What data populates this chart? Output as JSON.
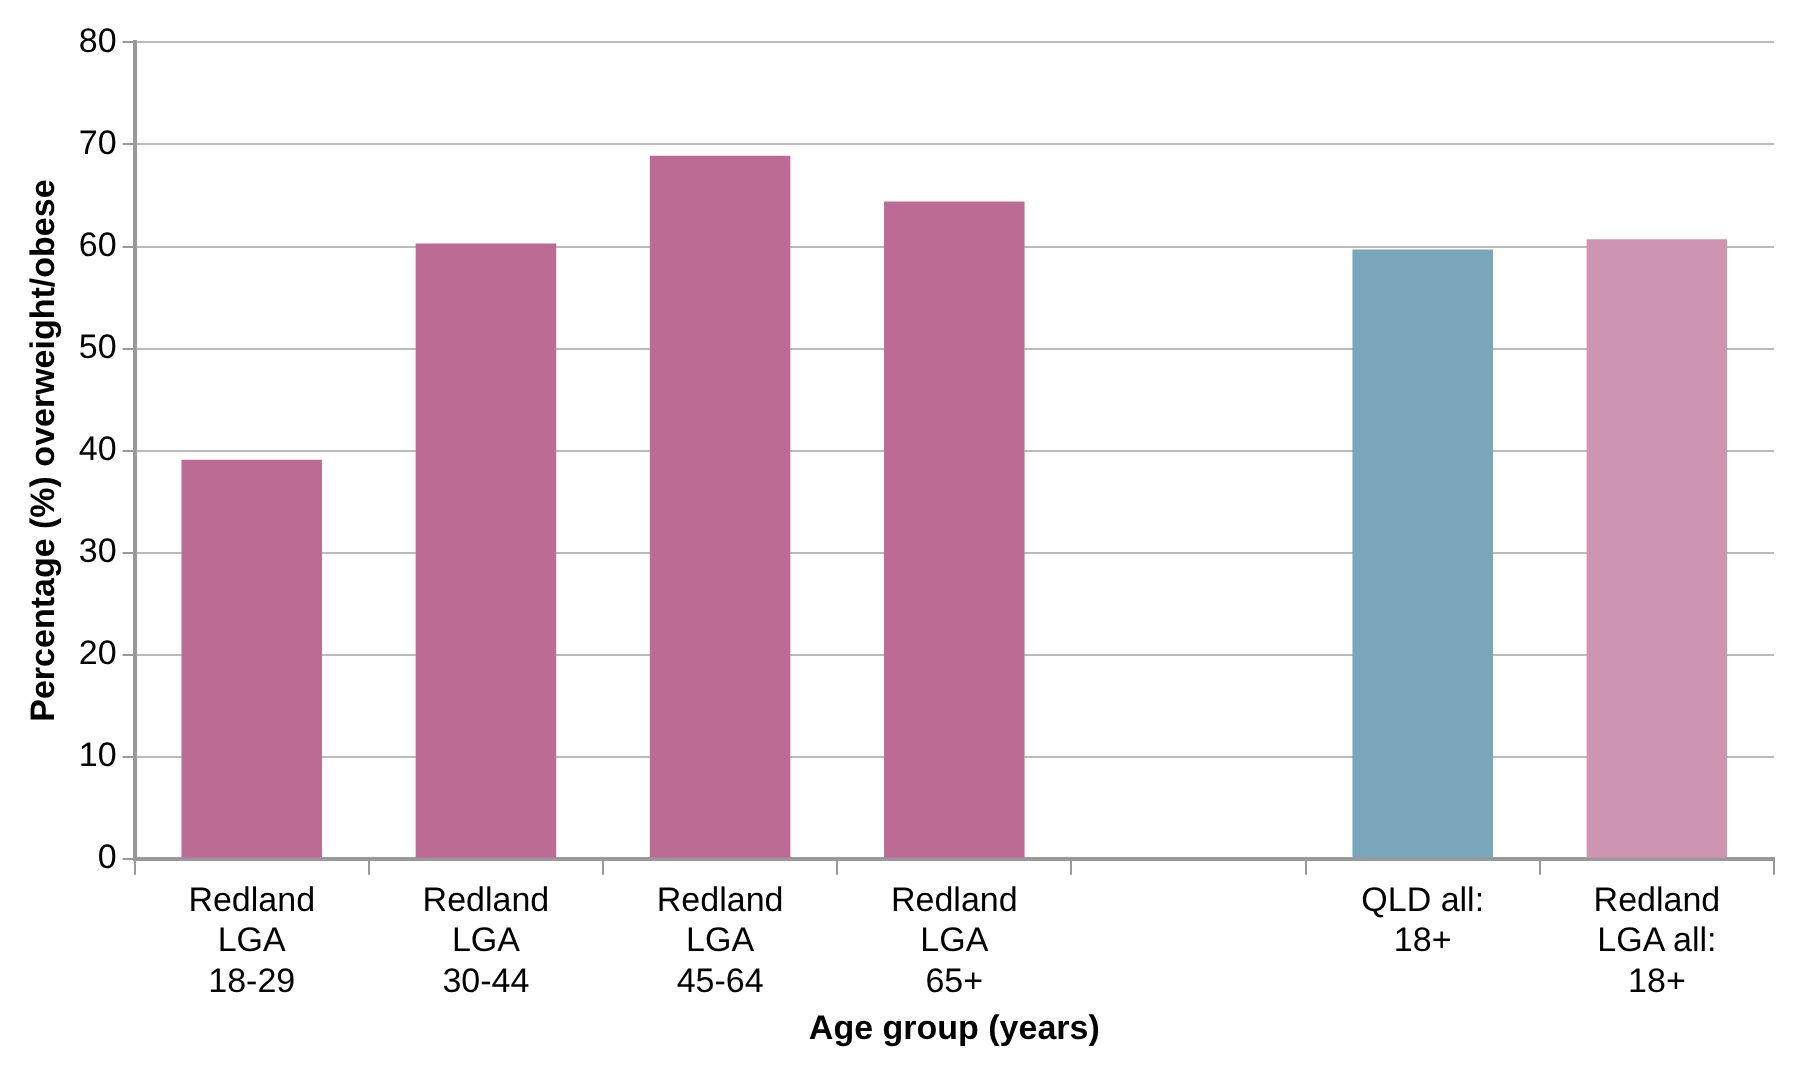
{
  "chart_data": {
    "type": "bar",
    "xlabel": "Age group (years)",
    "ylabel": "Percentage (%) overweight/obese",
    "categories": [
      "Redland\nLGA\n18-29",
      "Redland\nLGA\n30-44",
      "Redland\nLGA\n45-64",
      "Redland\nLGA\n65+",
      null,
      "QLD all:\n18+",
      "Redland\nLGA all:\n18+"
    ],
    "values": [
      39.1,
      60.3,
      68.9,
      64.4,
      null,
      59.7,
      60.7
    ],
    "colors": [
      "#bc6c94",
      "#bc6c94",
      "#bc6c94",
      "#bc6c94",
      "#bc6c94",
      "#79a6bb",
      "#ce95b1"
    ],
    "ylim": [
      0,
      80
    ],
    "yticks": [
      0,
      10,
      20,
      30,
      40,
      50,
      60,
      70,
      80
    ],
    "grid": "y",
    "legend": false
  }
}
